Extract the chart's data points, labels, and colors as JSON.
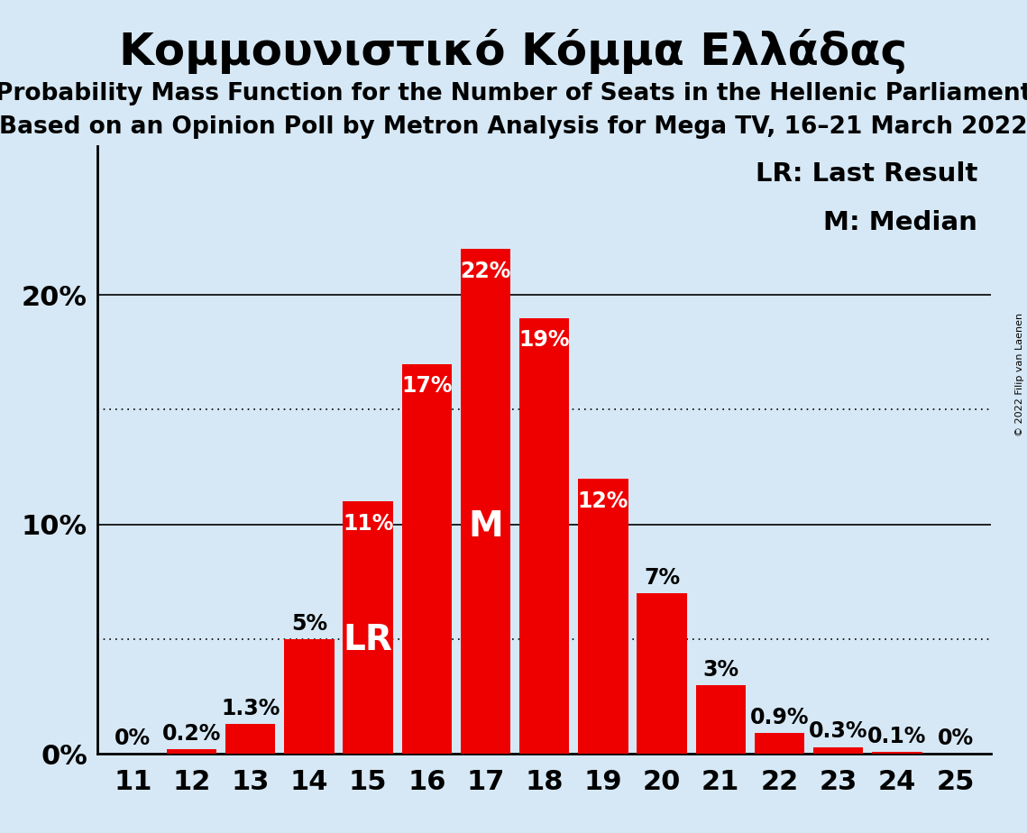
{
  "title": "Κομμουνιστικό Κόμμα Ελλάδας",
  "subtitle1": "Probability Mass Function for the Number of Seats in the Hellenic Parliament",
  "subtitle2": "Based on an Opinion Poll by Metron Analysis for Mega TV, 16–21 March 2022",
  "copyright": "© 2022 Filip van Laenen",
  "seats": [
    11,
    12,
    13,
    14,
    15,
    16,
    17,
    18,
    19,
    20,
    21,
    22,
    23,
    24,
    25
  ],
  "probabilities": [
    0.0,
    0.2,
    1.3,
    5.0,
    11.0,
    17.0,
    22.0,
    19.0,
    12.0,
    7.0,
    3.0,
    0.9,
    0.3,
    0.1,
    0.0
  ],
  "bar_color": "#ee0000",
  "background_color": "#d6e8f5",
  "label_colors_inside": "white",
  "label_colors_outside": "black",
  "last_result_seat": 15,
  "median_seat": 17,
  "lr_label": "LR",
  "m_label": "M",
  "legend_lr": "LR: Last Result",
  "legend_m": "M: Median",
  "dotted_line_values": [
    5.0,
    15.0
  ],
  "solid_line_values": [
    10.0,
    20.0
  ],
  "bar_label_threshold": 8.0,
  "xlabel_fontsize": 22,
  "title_fontsize": 36,
  "subtitle_fontsize": 19,
  "bar_label_fontsize": 17,
  "legend_fontsize": 21,
  "tick_fontsize": 22,
  "lr_m_fontsize": 28,
  "ylim_max": 26.5
}
